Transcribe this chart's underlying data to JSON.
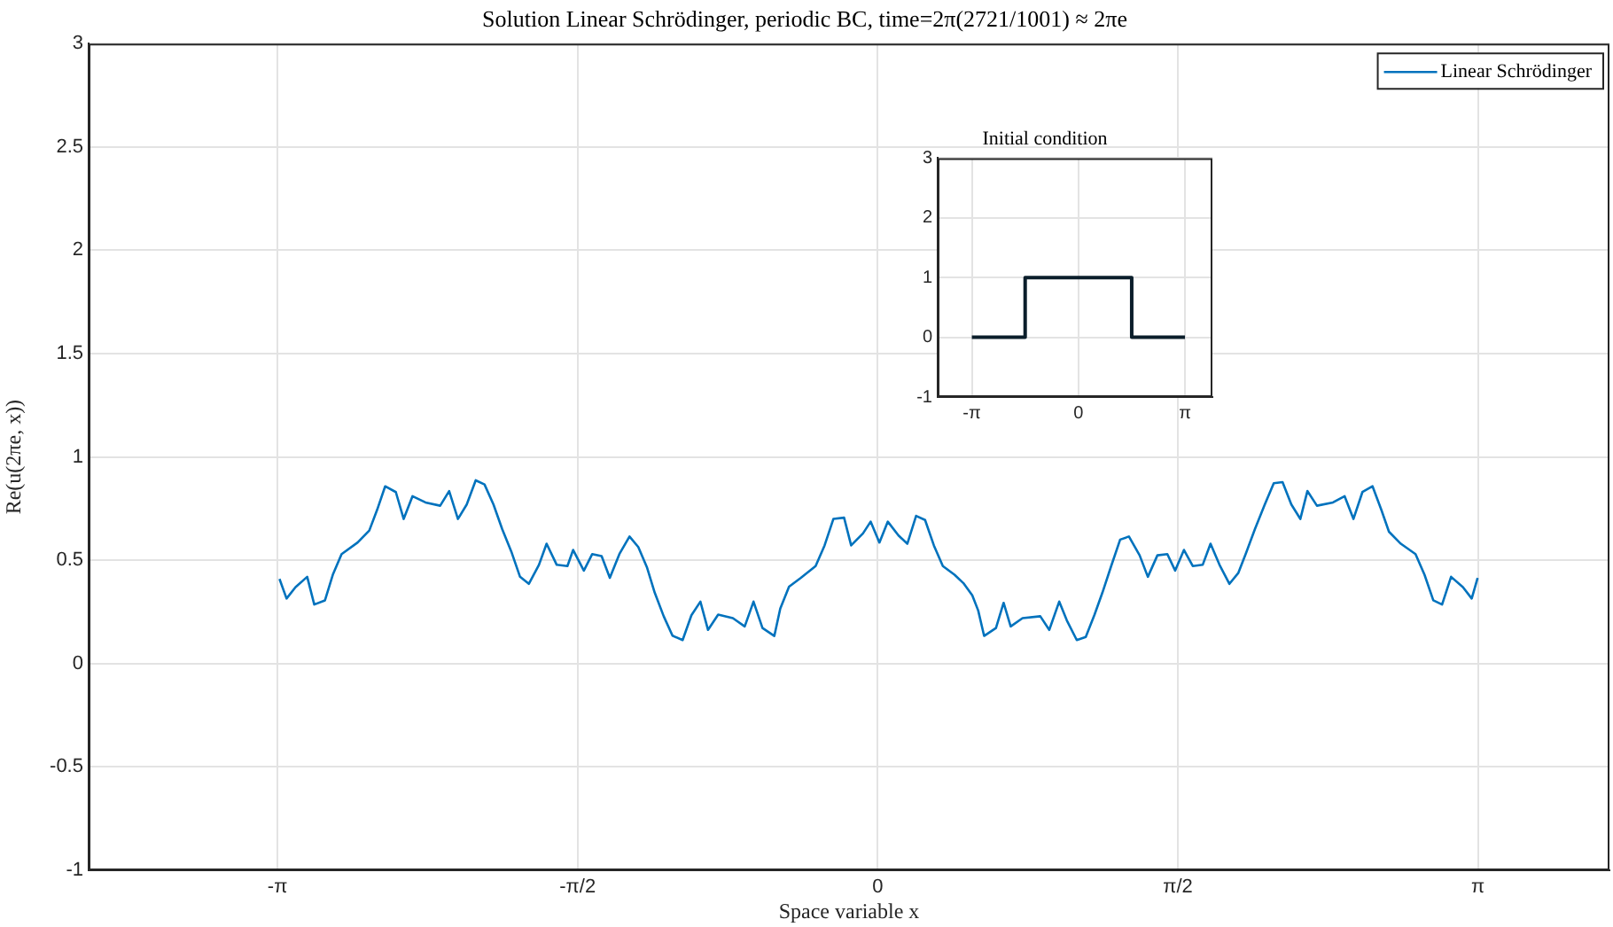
{
  "chart_data": [
    {
      "type": "line",
      "title": "Solution Linear Schrödinger, periodic BC, time=2π(2721/1001) ≈ 2πe",
      "xlabel": "Space variable x",
      "ylabel": "Re(u(2πe, x))",
      "xlim": [
        -4.13,
        3.83
      ],
      "ylim": [
        -1,
        3
      ],
      "xticks": [
        {
          "value": -3.1416,
          "label": "-π"
        },
        {
          "value": -1.5708,
          "label": "-π/2"
        },
        0,
        {
          "value": 1.5708,
          "label": "π/2"
        },
        {
          "value": 3.1416,
          "label": "π"
        }
      ],
      "yticks": [
        -1,
        -0.5,
        0,
        0.5,
        1,
        1.5,
        2,
        2.5,
        3
      ],
      "grid": true,
      "legend": "top right",
      "series": [
        {
          "name": "Linear Schrödinger",
          "color": "#0072bd",
          "x": [
            -3.131,
            -3.094,
            -3.047,
            -2.986,
            -2.949,
            -2.893,
            -2.852,
            -2.806,
            -2.722,
            -2.661,
            -2.62,
            -2.578,
            -2.522,
            -2.481,
            -2.435,
            -2.367,
            -2.29,
            -2.243,
            -2.197,
            -2.151,
            -2.104,
            -2.058,
            -2.011,
            -1.965,
            -1.918,
            -1.872,
            -1.826,
            -1.773,
            -1.733,
            -1.68,
            -1.624,
            -1.594,
            -1.538,
            -1.494,
            -1.445,
            -1.402,
            -1.352,
            -1.299,
            -1.253,
            -1.207,
            -1.167,
            -1.12,
            -1.074,
            -1.021,
            -0.975,
            -0.928,
            -0.888,
            -0.835,
            -0.758,
            -0.696,
            -0.65,
            -0.603,
            -0.541,
            -0.51,
            -0.464,
            -0.402,
            -0.325,
            -0.278,
            -0.232,
            -0.176,
            -0.139,
            -0.077,
            -0.037,
            0.009,
            0.053,
            0.109,
            0.155,
            0.201,
            0.248,
            0.294,
            0.341,
            0.402,
            0.448,
            0.495,
            0.526,
            0.557,
            0.619,
            0.659,
            0.696,
            0.758,
            0.851,
            0.898,
            0.95,
            0.99,
            1.042,
            1.089,
            1.135,
            1.176,
            1.222,
            1.269,
            1.315,
            1.371,
            1.414,
            1.464,
            1.516,
            1.557,
            1.603,
            1.649,
            1.701,
            1.742,
            1.789,
            1.841,
            1.887,
            1.928,
            1.974,
            2.026,
            2.073,
            2.119,
            2.165,
            2.212,
            2.249,
            2.299,
            2.383,
            2.444,
            2.49,
            2.537,
            2.59,
            2.636,
            2.676,
            2.738,
            2.815,
            2.862,
            2.908,
            2.954,
            3.001,
            3.063,
            3.109,
            3.14
          ],
          "values": [
            0.41,
            0.315,
            0.37,
            0.42,
            0.286,
            0.306,
            0.43,
            0.53,
            0.586,
            0.644,
            0.744,
            0.858,
            0.83,
            0.7,
            0.81,
            0.78,
            0.764,
            0.835,
            0.7,
            0.77,
            0.887,
            0.867,
            0.77,
            0.65,
            0.543,
            0.42,
            0.386,
            0.478,
            0.58,
            0.478,
            0.472,
            0.55,
            0.45,
            0.53,
            0.52,
            0.415,
            0.53,
            0.615,
            0.564,
            0.464,
            0.343,
            0.229,
            0.135,
            0.114,
            0.234,
            0.3,
            0.163,
            0.237,
            0.22,
            0.18,
            0.3,
            0.172,
            0.134,
            0.266,
            0.372,
            0.415,
            0.472,
            0.572,
            0.7,
            0.706,
            0.572,
            0.63,
            0.687,
            0.586,
            0.687,
            0.62,
            0.58,
            0.715,
            0.695,
            0.572,
            0.472,
            0.43,
            0.39,
            0.33,
            0.257,
            0.134,
            0.172,
            0.294,
            0.18,
            0.22,
            0.229,
            0.163,
            0.3,
            0.209,
            0.114,
            0.129,
            0.237,
            0.343,
            0.472,
            0.6,
            0.615,
            0.524,
            0.42,
            0.524,
            0.53,
            0.45,
            0.55,
            0.472,
            0.478,
            0.58,
            0.478,
            0.386,
            0.438,
            0.535,
            0.65,
            0.77,
            0.873,
            0.878,
            0.77,
            0.7,
            0.835,
            0.764,
            0.78,
            0.81,
            0.7,
            0.83,
            0.858,
            0.744,
            0.638,
            0.58,
            0.53,
            0.43,
            0.306,
            0.286,
            0.42,
            0.37,
            0.315,
            0.415
          ]
        }
      ]
    },
    {
      "type": "line",
      "title": "Initial condition",
      "xlim": [
        -4.15,
        3.95
      ],
      "ylim": [
        -1,
        3
      ],
      "xticks": [
        {
          "value": -3.1416,
          "label": "-π"
        },
        0,
        {
          "value": 3.1416,
          "label": "π"
        }
      ],
      "yticks": [
        -1,
        0,
        1,
        2,
        3
      ],
      "grid": true,
      "series": [
        {
          "color": "#0b1e2b",
          "x": [
            -3.1416,
            -1.5708,
            -1.5708,
            1.5708,
            1.5708,
            3.1416
          ],
          "values": [
            0,
            0,
            1,
            1,
            0,
            0
          ]
        }
      ]
    }
  ]
}
